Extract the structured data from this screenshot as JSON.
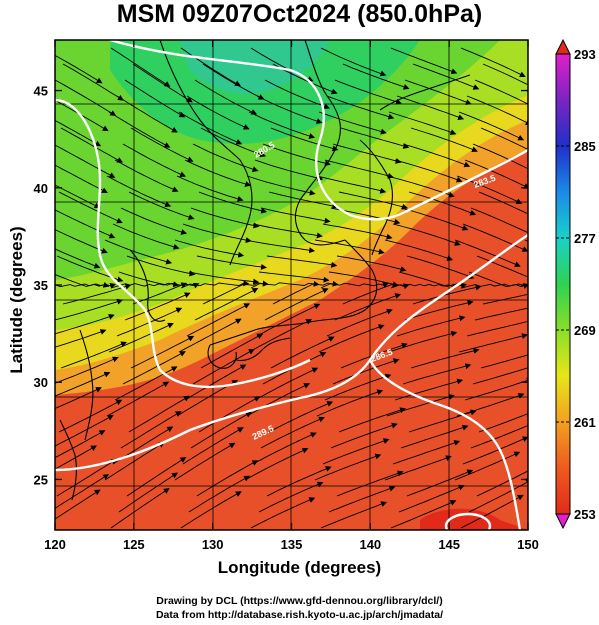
{
  "title": "MSM 09Z07Oct2024 (850.0hPa)",
  "axes": {
    "xlabel": "Longitude (degrees)",
    "ylabel": "Latitude  (degrees)",
    "xticks": [
      "120",
      "125",
      "130",
      "135",
      "140",
      "145",
      "150"
    ],
    "yticks": [
      "25",
      "30",
      "35",
      "40",
      "45"
    ],
    "xlim": [
      120,
      150
    ],
    "ylim": [
      22.4,
      47.6
    ]
  },
  "colorbar": {
    "labels": [
      "293",
      "285",
      "277",
      "269",
      "261",
      "253"
    ],
    "range": [
      253,
      293
    ],
    "colors": [
      "#e020c8",
      "#7a24c4",
      "#2030c8",
      "#1a8ae8",
      "#18d2c8",
      "#2ed250",
      "#8ade28",
      "#e6e618",
      "#f2a020",
      "#ee5a20",
      "#e22a1a"
    ]
  },
  "contours": {
    "labels": [
      "280.5",
      "283.5",
      "286.5",
      "289.5"
    ]
  },
  "credits": {
    "line1": "Drawing by DCL (https://www.gfd-dennou.org/library/dcl/)",
    "line2": "Data from http://database.rish.kyoto-u.ac.jp/arch/jmadata/"
  },
  "colors": {
    "frame": "#000000",
    "contour": "#ffffff",
    "coast": "#000000"
  }
}
